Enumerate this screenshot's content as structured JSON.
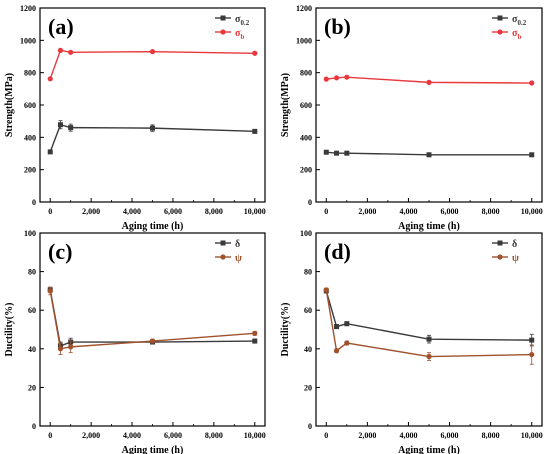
{
  "chart_data": [
    {
      "panel_label": "(a)",
      "type": "line",
      "x": [
        0,
        500,
        1000,
        5000,
        10000
      ],
      "xlabel": "Aging time (h)",
      "ylabel": "Strength(MPa)",
      "xlim": [
        -500,
        10500
      ],
      "ylim": [
        0,
        1200
      ],
      "xticks": [
        0,
        2000,
        4000,
        6000,
        8000,
        10000
      ],
      "xtick_labels": [
        "0",
        "2,000",
        "4,000",
        "6,000",
        "8,000",
        "10,000"
      ],
      "yticks": [
        0,
        200,
        400,
        600,
        800,
        1000,
        1200
      ],
      "ytick_labels": [
        "0",
        "200",
        "400",
        "600",
        "800",
        "1000",
        "1200"
      ],
      "legend_position": "top-right",
      "series": [
        {
          "name": "σ",
          "subscript": "0.2",
          "color": "#3a3a3a",
          "marker": "square",
          "values": [
            310,
            478,
            460,
            457,
            437
          ],
          "errors": [
            0,
            25,
            22,
            20,
            12
          ]
        },
        {
          "name": "σ",
          "subscript": "b",
          "color": "#e8383d",
          "marker": "circle",
          "values": [
            762,
            938,
            926,
            930,
            920
          ],
          "errors": [
            0,
            0,
            0,
            0,
            0
          ]
        }
      ]
    },
    {
      "panel_label": "(b)",
      "type": "line",
      "x": [
        0,
        500,
        1000,
        5000,
        10000
      ],
      "xlabel": "Aging time (h)",
      "ylabel": "Strength(MPa)",
      "xlim": [
        -500,
        10500
      ],
      "ylim": [
        0,
        1200
      ],
      "xticks": [
        0,
        2000,
        4000,
        6000,
        8000,
        10000
      ],
      "xtick_labels": [
        "0",
        "2,000",
        "4,000",
        "6,000",
        "8,000",
        "10,000"
      ],
      "yticks": [
        0,
        200,
        400,
        600,
        800,
        1000,
        1200
      ],
      "ytick_labels": [
        "0",
        "200",
        "400",
        "600",
        "800",
        "1000",
        "1200"
      ],
      "legend_position": "top-right",
      "series": [
        {
          "name": "σ",
          "subscript": "0.2",
          "color": "#3a3a3a",
          "marker": "square",
          "values": [
            308,
            302,
            302,
            292,
            292
          ],
          "errors": [
            0,
            0,
            0,
            0,
            0
          ]
        },
        {
          "name": "σ",
          "subscript": "b",
          "color": "#e8383d",
          "marker": "circle",
          "values": [
            760,
            768,
            772,
            740,
            736
          ],
          "errors": [
            0,
            0,
            0,
            0,
            0
          ]
        }
      ]
    },
    {
      "panel_label": "(c)",
      "type": "line",
      "x": [
        0,
        500,
        1000,
        5000,
        10000
      ],
      "xlabel": "Aging time (h)",
      "ylabel": "Ductility(%)",
      "xlim": [
        -500,
        10500
      ],
      "ylim": [
        0,
        100
      ],
      "xticks": [
        0,
        2000,
        4000,
        6000,
        8000,
        10000
      ],
      "xtick_labels": [
        "0",
        "2,000",
        "4,000",
        "6,000",
        "8,000",
        "10,000"
      ],
      "yticks": [
        0,
        20,
        40,
        60,
        80,
        100
      ],
      "ytick_labels": [
        "0",
        "20",
        "40",
        "60",
        "80",
        "100"
      ],
      "legend_position": "top-right",
      "series": [
        {
          "name": "δ",
          "subscript": "",
          "color": "#3a3a3a",
          "marker": "square",
          "values": [
            70.5,
            41.5,
            43.5,
            43.5,
            44
          ],
          "errors": [
            1,
            2,
            2,
            1,
            1
          ]
        },
        {
          "name": "ψ",
          "subscript": "",
          "color": "#a0522d",
          "marker": "circle",
          "values": [
            70,
            40,
            41,
            44,
            48
          ],
          "errors": [
            2,
            3,
            3,
            1,
            1
          ]
        }
      ]
    },
    {
      "panel_label": "(d)",
      "type": "line",
      "x": [
        0,
        500,
        1000,
        5000,
        10000
      ],
      "xlabel": "Aging time (h)",
      "ylabel": "Ductility(%)",
      "xlim": [
        -500,
        10500
      ],
      "ylim": [
        0,
        100
      ],
      "xticks": [
        0,
        2000,
        4000,
        6000,
        8000,
        10000
      ],
      "xtick_labels": [
        "0",
        "2,000",
        "4,000",
        "6,000",
        "8,000",
        "10,000"
      ],
      "yticks": [
        0,
        20,
        40,
        60,
        80,
        100
      ],
      "ytick_labels": [
        "0",
        "20",
        "40",
        "60",
        "80",
        "100"
      ],
      "legend_position": "top-right",
      "series": [
        {
          "name": "δ",
          "subscript": "",
          "color": "#3a3a3a",
          "marker": "square",
          "values": [
            70,
            51.5,
            53,
            45,
            44.5
          ],
          "errors": [
            1,
            1,
            1,
            2,
            3
          ]
        },
        {
          "name": "ψ",
          "subscript": "",
          "color": "#a0522d",
          "marker": "circle",
          "values": [
            70.5,
            39,
            43,
            36,
            37
          ],
          "errors": [
            1,
            1,
            1,
            2,
            5
          ]
        }
      ]
    }
  ]
}
